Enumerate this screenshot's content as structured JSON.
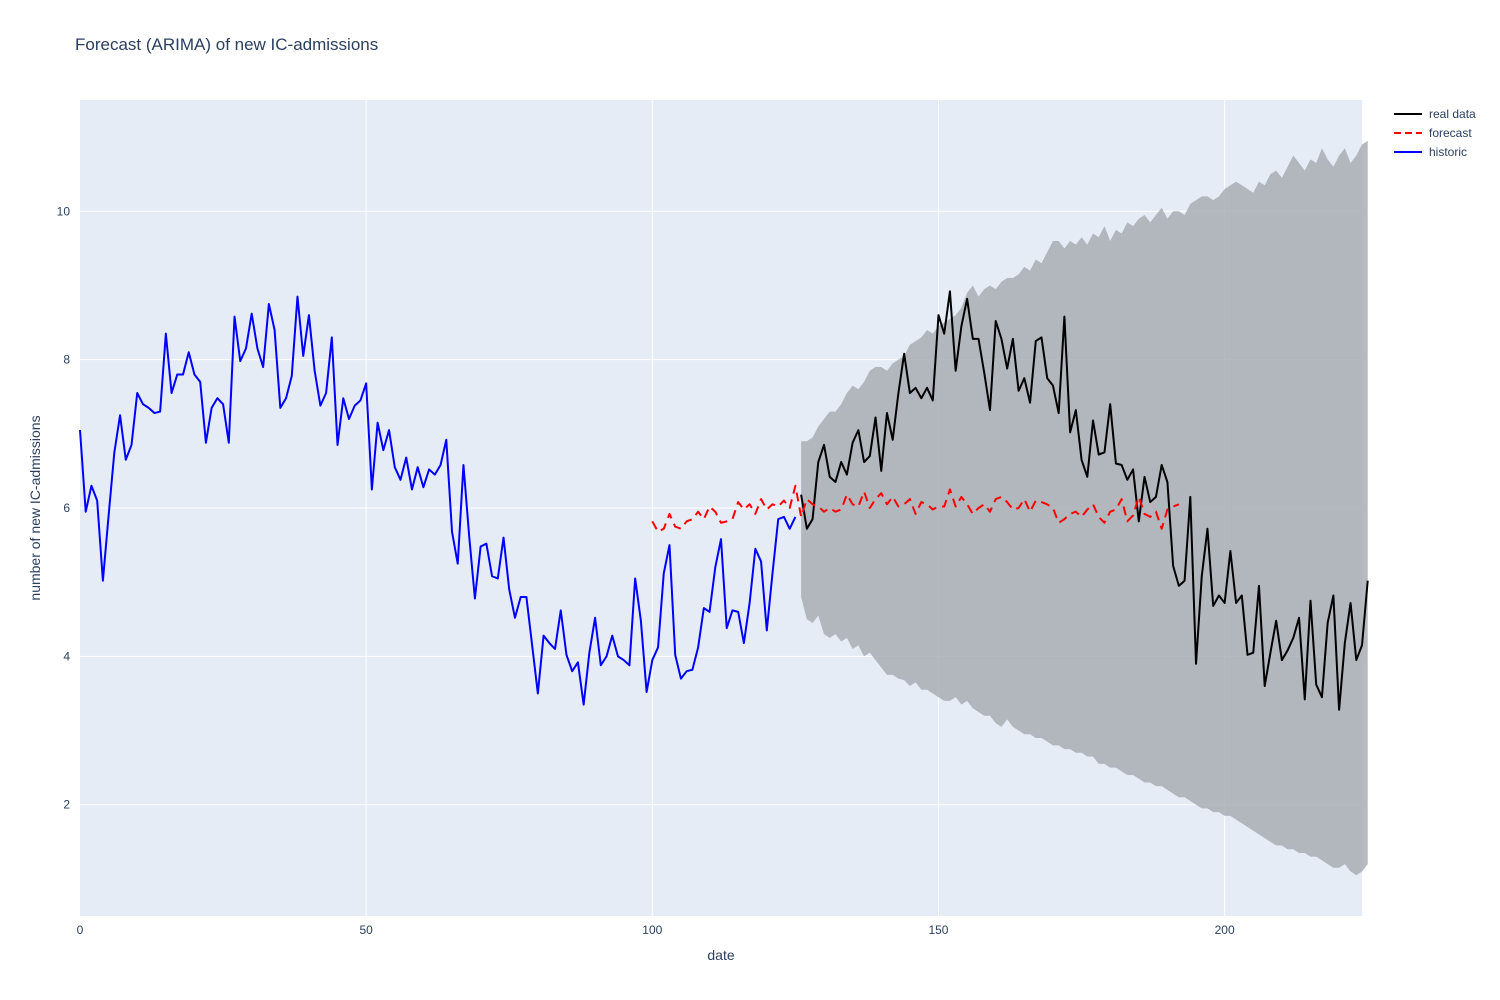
{
  "chart_data": {
    "type": "line",
    "title": "Forecast (ARIMA) of new IC-admissions",
    "xlabel": "date",
    "ylabel": "number of new IC-admissions",
    "xlim": [
      0,
      224
    ],
    "ylim": [
      0.5,
      11.5
    ],
    "x_ticks": [
      0,
      50,
      100,
      150,
      200
    ],
    "y_ticks": [
      2,
      4,
      6,
      8,
      10
    ],
    "grid": true,
    "legend_position": "top-right, outside plot",
    "colors": {
      "background": "#e5ecf6",
      "grid": "#ffffff",
      "real_data": "#000000",
      "forecast": "#ff0000",
      "historic": "#0000ff",
      "confidence_band": "#a9adb3"
    },
    "legend": [
      {
        "name": "real data",
        "color": "#000000",
        "dash": "solid"
      },
      {
        "name": "forecast",
        "color": "#ff0000",
        "dash": "dash"
      },
      {
        "name": "historic",
        "color": "#0000ff",
        "dash": "solid"
      }
    ],
    "series": [
      {
        "name": "historic",
        "color": "#0000ff",
        "x_start": 0,
        "values": [
          7.05,
          5.95,
          6.3,
          6.1,
          5.02,
          5.9,
          6.75,
          7.25,
          6.65,
          6.85,
          7.55,
          7.4,
          7.35,
          7.28,
          7.3,
          8.35,
          7.55,
          7.8,
          7.8,
          8.1,
          7.8,
          7.7,
          6.88,
          7.35,
          7.48,
          7.4,
          6.88,
          8.58,
          7.98,
          8.15,
          8.62,
          8.15,
          7.9,
          8.75,
          8.4,
          7.35,
          7.48,
          7.78,
          8.85,
          8.05,
          8.6,
          7.85,
          7.38,
          7.55,
          8.3,
          6.85,
          7.48,
          7.2,
          7.38,
          7.45,
          7.68,
          6.25,
          7.15,
          6.78,
          7.05,
          6.55,
          6.38,
          6.68,
          6.25,
          6.55,
          6.28,
          6.52,
          6.45,
          6.58,
          6.92,
          5.68,
          5.25,
          6.58,
          5.62,
          4.78,
          5.48,
          5.52,
          5.08,
          5.05,
          5.6,
          4.9,
          4.52,
          4.8,
          4.8,
          4.15,
          3.5,
          4.28,
          4.18,
          4.1,
          4.62,
          4.02,
          3.8,
          3.92,
          3.35,
          4.05,
          4.52,
          3.88,
          4.0,
          4.28,
          4.0,
          3.95,
          3.88,
          5.05,
          4.48,
          3.52,
          3.95,
          4.12,
          5.12,
          5.5,
          4.02,
          3.7,
          3.8,
          3.82,
          4.12,
          4.65,
          4.6,
          5.2,
          5.58,
          4.38,
          4.62,
          4.6,
          4.18,
          4.72,
          5.45,
          5.28,
          4.35,
          5.12,
          5.85,
          5.88,
          5.72,
          5.88
        ]
      },
      {
        "name": "real data",
        "color": "#000000",
        "x_start": 126,
        "values": [
          6.18,
          5.72,
          5.85,
          6.62,
          6.85,
          6.42,
          6.35,
          6.62,
          6.45,
          6.88,
          7.05,
          6.62,
          6.7,
          7.22,
          6.5,
          7.28,
          6.92,
          7.55,
          8.08,
          7.55,
          7.62,
          7.48,
          7.62,
          7.45,
          8.6,
          8.35,
          8.92,
          7.85,
          8.45,
          8.82,
          8.28,
          8.28,
          7.82,
          7.32,
          8.52,
          8.28,
          7.88,
          8.28,
          7.58,
          7.75,
          7.42,
          8.25,
          8.3,
          7.75,
          7.65,
          7.28,
          8.58,
          7.02,
          7.32,
          6.65,
          6.42,
          7.18,
          6.72,
          6.75,
          7.4,
          6.6,
          6.58,
          6.38,
          6.52,
          5.82,
          6.42,
          6.08,
          6.15,
          6.58,
          6.35,
          5.22,
          4.95,
          5.02,
          6.15,
          3.9,
          5.08,
          5.72,
          4.68,
          4.82,
          4.72,
          5.42,
          4.72,
          4.82,
          4.02,
          4.05,
          4.95,
          3.6,
          4.05,
          4.48,
          3.95,
          4.08,
          4.25,
          4.52,
          3.42,
          4.75,
          3.62,
          3.45,
          4.45,
          4.82,
          3.28,
          4.18,
          4.72,
          3.95,
          4.15,
          5.02
        ]
      },
      {
        "name": "forecast",
        "color": "#ff0000",
        "x_start": 100,
        "values": [
          5.82,
          5.68,
          5.72,
          5.92,
          5.75,
          5.72,
          5.82,
          5.85,
          5.95,
          5.85,
          6.02,
          5.95,
          5.8,
          5.82,
          5.85,
          6.08,
          5.98,
          6.05,
          5.92,
          6.12,
          5.98,
          6.05,
          6.02,
          6.1,
          6.0,
          6.3,
          5.88,
          6.12,
          6.05,
          6.02,
          5.95,
          6.0,
          5.95,
          5.98,
          6.18,
          6.05,
          6.02,
          6.22,
          6.0,
          6.12,
          6.2,
          6.05,
          6.15,
          6.02,
          6.05,
          6.12,
          5.92,
          6.08,
          6.05,
          5.98,
          6.02,
          6.02,
          6.25,
          6.02,
          6.15,
          6.05,
          5.92,
          6.0,
          6.05,
          5.95,
          6.12,
          6.15,
          6.08,
          5.98,
          6.0,
          6.12,
          5.95,
          6.1,
          6.08,
          6.05,
          6.0,
          5.8,
          5.85,
          5.92,
          5.95,
          5.88,
          5.98,
          6.05,
          5.88,
          5.8,
          5.95,
          5.98,
          6.12,
          5.82,
          5.9,
          6.15,
          5.92,
          5.88,
          5.95,
          5.72,
          5.98,
          6.02,
          6.05
        ]
      }
    ],
    "confidence_band": {
      "x_start": 126,
      "upper": [
        6.9,
        6.9,
        6.95,
        7.1,
        7.2,
        7.3,
        7.3,
        7.4,
        7.55,
        7.65,
        7.6,
        7.7,
        7.85,
        7.9,
        7.9,
        7.85,
        7.95,
        8.0,
        8.05,
        8.2,
        8.25,
        8.3,
        8.4,
        8.35,
        8.45,
        8.5,
        8.55,
        8.6,
        8.7,
        8.9,
        9.0,
        8.85,
        8.95,
        9.0,
        8.95,
        9.05,
        9.1,
        9.1,
        9.15,
        9.25,
        9.2,
        9.35,
        9.3,
        9.45,
        9.6,
        9.6,
        9.5,
        9.6,
        9.55,
        9.65,
        9.55,
        9.7,
        9.65,
        9.8,
        9.6,
        9.75,
        9.7,
        9.85,
        9.8,
        9.9,
        9.95,
        9.85,
        9.95,
        10.05,
        9.9,
        10.0,
        10.0,
        9.95,
        10.1,
        10.15,
        10.2,
        10.2,
        10.15,
        10.2,
        10.3,
        10.35,
        10.4,
        10.35,
        10.3,
        10.25,
        10.4,
        10.35,
        10.5,
        10.55,
        10.45,
        10.6,
        10.75,
        10.65,
        10.55,
        10.7,
        10.65,
        10.85,
        10.7,
        10.6,
        10.75,
        10.85,
        10.65,
        10.75,
        10.9,
        10.95
      ],
      "lower": [
        4.8,
        4.5,
        4.45,
        4.55,
        4.3,
        4.25,
        4.3,
        4.2,
        4.25,
        4.1,
        4.15,
        4.0,
        4.05,
        3.95,
        3.85,
        3.75,
        3.75,
        3.7,
        3.68,
        3.6,
        3.65,
        3.55,
        3.55,
        3.5,
        3.45,
        3.4,
        3.4,
        3.45,
        3.35,
        3.4,
        3.3,
        3.25,
        3.2,
        3.2,
        3.1,
        3.05,
        3.15,
        3.05,
        3.0,
        2.95,
        2.95,
        2.9,
        2.9,
        2.85,
        2.8,
        2.8,
        2.75,
        2.75,
        2.7,
        2.7,
        2.65,
        2.65,
        2.55,
        2.55,
        2.5,
        2.5,
        2.45,
        2.4,
        2.4,
        2.35,
        2.3,
        2.3,
        2.25,
        2.25,
        2.2,
        2.15,
        2.1,
        2.1,
        2.05,
        2.0,
        1.95,
        1.95,
        1.9,
        1.9,
        1.85,
        1.85,
        1.8,
        1.75,
        1.7,
        1.65,
        1.6,
        1.55,
        1.5,
        1.45,
        1.45,
        1.4,
        1.4,
        1.35,
        1.35,
        1.3,
        1.3,
        1.25,
        1.2,
        1.15,
        1.15,
        1.2,
        1.1,
        1.05,
        1.1,
        1.2
      ]
    }
  }
}
